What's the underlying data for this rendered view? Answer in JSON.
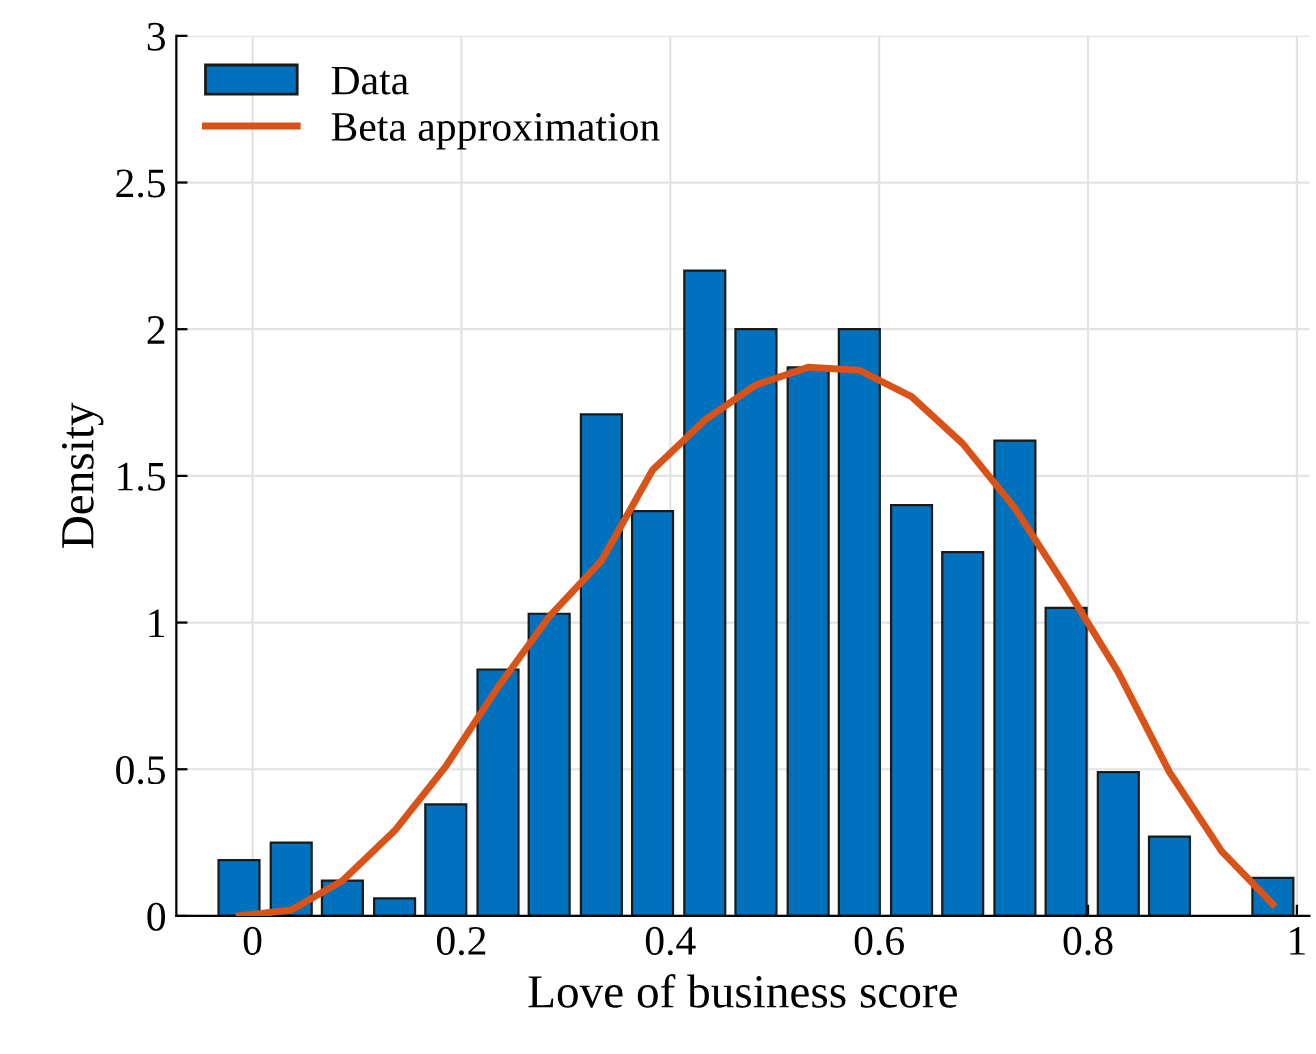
{
  "chart_data": {
    "type": "bar",
    "xlabel": "Love of business score",
    "ylabel": "Density",
    "x": [
      -0.013,
      0.037,
      0.086,
      0.136,
      0.185,
      0.235,
      0.284,
      0.334,
      0.383,
      0.433,
      0.482,
      0.532,
      0.581,
      0.631,
      0.68,
      0.73,
      0.779,
      0.829,
      0.878,
      0.928,
      0.977
    ],
    "series": [
      {
        "name": "Data",
        "color": "#0072bd",
        "values": [
          0.19,
          0.25,
          0.12,
          0.06,
          0.38,
          0.84,
          1.03,
          1.71,
          1.38,
          2.2,
          2.0,
          1.87,
          2.0,
          1.4,
          1.24,
          1.62,
          1.05,
          0.49,
          0.27,
          null,
          0.13
        ]
      },
      {
        "name": "Beta approximation",
        "type": "line",
        "color": "#d95319",
        "values": [
          0,
          0.02,
          0.12,
          0.29,
          0.51,
          0.78,
          1.02,
          1.21,
          1.52,
          1.69,
          1.81,
          1.87,
          1.86,
          1.77,
          1.61,
          1.39,
          1.12,
          0.83,
          0.49,
          0.22,
          0.04
        ]
      }
    ],
    "xlim": [
      -0.073,
      1.012
    ],
    "ylim": [
      0,
      3
    ],
    "xticks": [
      0,
      0.2,
      0.4,
      0.6,
      0.8,
      1
    ],
    "yticks": [
      0,
      0.5,
      1,
      1.5,
      2,
      2.5,
      3
    ],
    "grid": true,
    "legend": "top left"
  }
}
